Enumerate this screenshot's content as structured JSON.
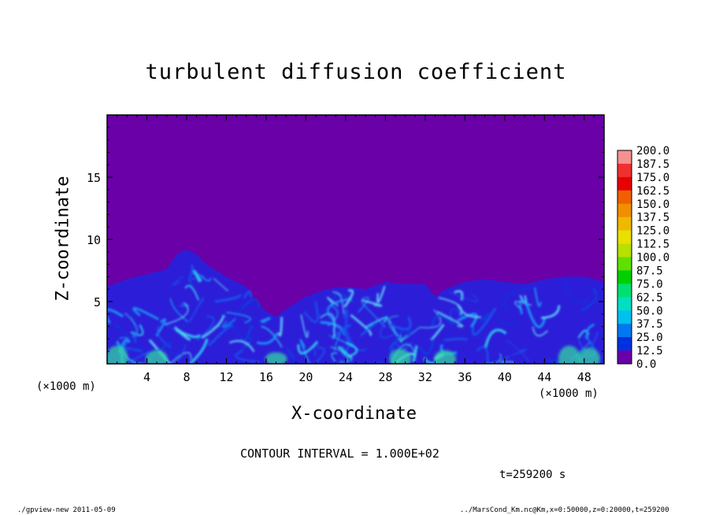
{
  "chart_data": {
    "type": "heatmap",
    "title": "turbulent diffusion coefficient",
    "xlabel": "X-coordinate",
    "ylabel": "Z-coordinate",
    "x_unit": "(×1000 m)",
    "x_range": [
      0,
      50
    ],
    "y_range": [
      0,
      20
    ],
    "x_ticks": [
      4,
      8,
      12,
      16,
      20,
      24,
      28,
      32,
      36,
      40,
      44,
      48
    ],
    "y_ticks": [
      5,
      10,
      15
    ],
    "colorbar": {
      "labels": [
        "200.0",
        "187.5",
        "175.0",
        "162.5",
        "150.0",
        "137.5",
        "125.0",
        "112.5",
        "100.0",
        "87.5",
        "75.0",
        "62.5",
        "50.0",
        "37.5",
        "25.0",
        "12.5",
        "0.0"
      ],
      "colors": [
        "#f79090",
        "#f03030",
        "#e80000",
        "#f06000",
        "#f09000",
        "#f0b800",
        "#e8e000",
        "#b8e000",
        "#60e000",
        "#00d000",
        "#00e070",
        "#00e0c0",
        "#00c0f0",
        "#0078f0",
        "#0030e0",
        "#2000b0",
        "#6a00a8"
      ]
    },
    "background_color": "#6a00a8",
    "boundary_layer_profile": [
      [
        0,
        6.2
      ],
      [
        2,
        6.8
      ],
      [
        4,
        7.2
      ],
      [
        6,
        7.6
      ],
      [
        7,
        8.8
      ],
      [
        8,
        9.2
      ],
      [
        9,
        8.8
      ],
      [
        10,
        8.0
      ],
      [
        12,
        7.0
      ],
      [
        14,
        6.2
      ],
      [
        15,
        5.0
      ],
      [
        16,
        4.2
      ],
      [
        17,
        3.8
      ],
      [
        18,
        4.4
      ],
      [
        20,
        5.4
      ],
      [
        22,
        6.0
      ],
      [
        24,
        6.2
      ],
      [
        26,
        6.0
      ],
      [
        28,
        6.6
      ],
      [
        30,
        6.4
      ],
      [
        32,
        6.4
      ],
      [
        33,
        5.4
      ],
      [
        34,
        6.0
      ],
      [
        36,
        6.6
      ],
      [
        38,
        6.8
      ],
      [
        40,
        6.6
      ],
      [
        42,
        6.4
      ],
      [
        44,
        6.8
      ],
      [
        46,
        7.0
      ],
      [
        48,
        7.0
      ],
      [
        50,
        6.6
      ]
    ],
    "contour_interval": "CONTOUR INTERVAL = 1.000E+02",
    "time_label": "t=259200 s"
  },
  "footer": {
    "left": "./gpview-new  2011-05-09",
    "right": "../MarsCond_Km.nc@Km,x=0:50000,z=0:20000,t=259200"
  }
}
